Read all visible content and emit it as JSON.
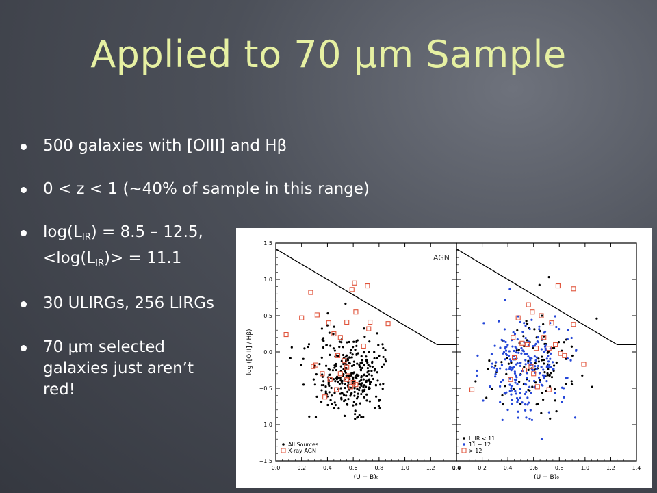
{
  "slide": {
    "title": "Applied to 70 μm Sample",
    "bullets": [
      {
        "text": "500 galaxies with [OIII] and Hβ"
      },
      {
        "text": "0 < z < 1 (~40% of sample in this range)"
      },
      {
        "line1_pre": "log(L",
        "line1_sub": "IR",
        "line1_post": ") = 8.5 – 12.5,",
        "line2_pre": "<log(L",
        "line2_sub": "IR",
        "line2_post": ")> = 11.1"
      },
      {
        "text": "30 ULIRGs, 256 LIRGs"
      },
      {
        "lines": [
          "70 μm selected",
          "galaxies just aren’t",
          "red!"
        ]
      }
    ]
  },
  "chart_data": [
    {
      "type": "scatter",
      "xlabel": "(U − B)₀",
      "ylabel": "log ([OIII] / Hβ)",
      "xlim": [
        0.0,
        1.4
      ],
      "ylim": [
        -1.5,
        1.5
      ],
      "xticks": [
        "0.0",
        "0.2",
        "0.4",
        "0.6",
        "0.8",
        "1.0",
        "1.2",
        "1.4"
      ],
      "yticks": [
        "−1.5",
        "−1.0",
        "−0.5",
        "0.0",
        "0.5",
        "1.0",
        "1.5"
      ],
      "annotation": "AGN",
      "dividing_line": [
        [
          0.0,
          1.42
        ],
        [
          1.25,
          0.1
        ],
        [
          1.4,
          0.1
        ]
      ],
      "legend_position": "bottom-left",
      "series": [
        {
          "name": "All Sources",
          "color": "#000000",
          "marker": "dot",
          "cluster": {
            "cx": 0.58,
            "cy": -0.3,
            "sx": 0.15,
            "sy": 0.3,
            "n": 320
          }
        },
        {
          "name": "X-ray AGN",
          "color": "#e0533a",
          "marker": "open-square",
          "points": [
            [
              0.08,
              0.24
            ],
            [
              0.2,
              0.47
            ],
            [
              0.27,
              0.82
            ],
            [
              0.32,
              0.51
            ],
            [
              0.41,
              0.4
            ],
            [
              0.45,
              0.25
            ],
            [
              0.48,
              -0.05
            ],
            [
              0.53,
              -0.12
            ],
            [
              0.55,
              -0.21
            ],
            [
              0.5,
              -0.3
            ],
            [
              0.55,
              -0.38
            ],
            [
              0.62,
              -0.45
            ],
            [
              0.47,
              -0.52
            ],
            [
              0.36,
              -0.3
            ],
            [
              0.42,
              -0.38
            ],
            [
              0.38,
              -0.62
            ],
            [
              0.31,
              -0.18
            ],
            [
              0.29,
              -0.2
            ],
            [
              0.59,
              0.86
            ],
            [
              0.61,
              0.95
            ],
            [
              0.71,
              0.91
            ],
            [
              0.62,
              0.55
            ],
            [
              0.73,
              0.41
            ],
            [
              0.55,
              0.41
            ],
            [
              0.72,
              0.32
            ],
            [
              0.68,
              0.08
            ],
            [
              0.87,
              0.39
            ],
            [
              0.5,
              0.2
            ],
            [
              0.56,
              -0.33
            ],
            [
              0.6,
              -0.42
            ],
            [
              0.58,
              -0.48
            ]
          ]
        }
      ]
    },
    {
      "type": "scatter",
      "xlabel": "(U − B)₀",
      "ylabel": "",
      "xlim": [
        0.0,
        1.4
      ],
      "ylim": [
        -1.5,
        1.5
      ],
      "xticks": [
        "0.0",
        "0.2",
        "0.4",
        "0.6",
        "0.8",
        "1.0",
        "1.2",
        "1.4"
      ],
      "dividing_line": [
        [
          0.0,
          1.42
        ],
        [
          1.25,
          0.1
        ],
        [
          1.4,
          0.1
        ]
      ],
      "legend_position": "bottom-left",
      "series": [
        {
          "name": "L_IR < 11",
          "color": "#000000",
          "marker": "dot",
          "cluster": {
            "cx": 0.6,
            "cy": -0.2,
            "sx": 0.17,
            "sy": 0.35,
            "n": 110
          }
        },
        {
          "name": "11 − 12",
          "color": "#2547d8",
          "marker": "dot",
          "cluster": {
            "cx": 0.55,
            "cy": -0.2,
            "sx": 0.16,
            "sy": 0.35,
            "n": 230
          }
        },
        {
          "name": "> 12",
          "color": "#e0533a",
          "marker": "open-square",
          "points": [
            [
              0.79,
              0.91
            ],
            [
              0.91,
              0.87
            ],
            [
              0.56,
              0.65
            ],
            [
              0.59,
              0.55
            ],
            [
              0.48,
              0.47
            ],
            [
              0.66,
              0.5
            ],
            [
              0.74,
              0.4
            ],
            [
              0.91,
              0.38
            ],
            [
              0.44,
              0.2
            ],
            [
              0.51,
              0.12
            ],
            [
              0.55,
              0.1
            ],
            [
              0.62,
              0.05
            ],
            [
              0.72,
              0.05
            ],
            [
              0.77,
              0.1
            ],
            [
              0.81,
              -0.02
            ],
            [
              0.84,
              -0.05
            ],
            [
              0.99,
              -0.17
            ],
            [
              0.45,
              -0.08
            ],
            [
              0.53,
              -0.25
            ],
            [
              0.6,
              -0.3
            ],
            [
              0.42,
              -0.38
            ],
            [
              0.63,
              -0.48
            ],
            [
              0.72,
              -0.52
            ],
            [
              0.12,
              -0.52
            ],
            [
              0.58,
              -0.2
            ],
            [
              0.68,
              0.2
            ]
          ]
        }
      ]
    }
  ]
}
